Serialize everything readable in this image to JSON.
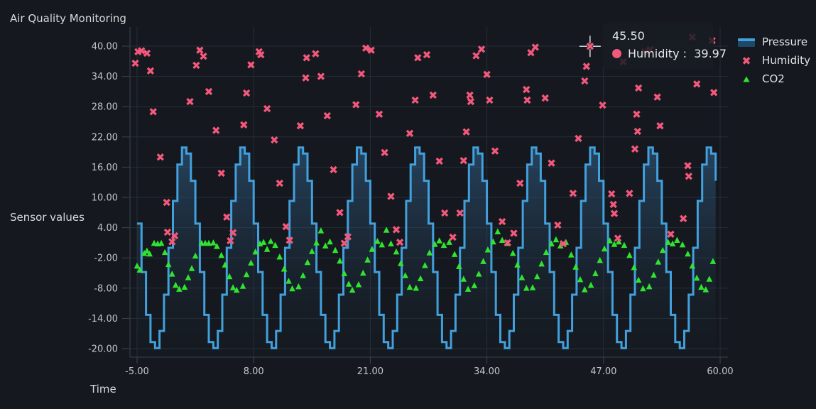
{
  "title": "Air Quality Monitoring",
  "colors": {
    "background": "#15191f",
    "grid": "#252d38",
    "axis": "#39424e",
    "tick_text": "#c2c7cc",
    "label_text": "#d6d8da",
    "pressure_line": "#42a0dd",
    "pressure_fill_top": "rgba(62,125,180,0.42)",
    "pressure_fill_bottom": "rgba(25,40,55,0.05)",
    "humidity": "#f4587b",
    "co2": "#2fe42f",
    "crosshair": "#e6e9ec"
  },
  "legend": {
    "items": [
      {
        "label": "Pressure",
        "type": "area"
      },
      {
        "label": "Humidity",
        "type": "cross"
      },
      {
        "label": "CO2",
        "type": "triangle"
      }
    ]
  },
  "tooltip": {
    "x_value": "45.50",
    "series_label": "Humidity",
    "separator": " :  ",
    "value": "39.97",
    "point": {
      "t": 45.5,
      "v": 39.97
    }
  },
  "chart_data": {
    "type": "mixed",
    "title": "Air Quality Monitoring",
    "xlabel": "Time",
    "ylabel": "Sensor values",
    "xlim": [
      -5.8,
      60.9
    ],
    "ylim": [
      -21.7,
      43.8
    ],
    "grid": true,
    "legend_position": "right-top-outside",
    "x_ticks": [
      {
        "v": -5,
        "label": "-5.00"
      },
      {
        "v": 8,
        "label": "8.00"
      },
      {
        "v": 21,
        "label": "21.00"
      },
      {
        "v": 34,
        "label": "34.00"
      },
      {
        "v": 47,
        "label": "47.00"
      },
      {
        "v": 60,
        "label": "60.00"
      }
    ],
    "y_ticks": [
      {
        "v": 40,
        "label": "40.00"
      },
      {
        "v": 34,
        "label": "34.00"
      },
      {
        "v": 28,
        "label": "28.00"
      },
      {
        "v": 22,
        "label": "22.00"
      },
      {
        "v": 16,
        "label": "16.00"
      },
      {
        "v": 10,
        "label": "10.00"
      },
      {
        "v": 4,
        "label": "4.00"
      },
      {
        "v": -2,
        "label": "-2.00"
      },
      {
        "v": -8,
        "label": "-8.00"
      },
      {
        "v": -14,
        "label": "-14.00"
      },
      {
        "v": -20,
        "label": "-20.00"
      }
    ],
    "series": [
      {
        "name": "Pressure",
        "type": "step-area",
        "x0": -5,
        "dx": 0.5,
        "values": [
          4.8,
          -4.8,
          -13.3,
          -18.7,
          -19.9,
          -16.5,
          -9.3,
          0,
          9.3,
          16.5,
          19.9,
          18.7,
          13.3,
          4.8,
          -4.8,
          -13.3,
          -18.7,
          -19.9,
          -16.5,
          -9.3,
          0,
          9.3,
          16.5,
          19.9,
          18.7,
          13.3,
          4.8,
          -4.8,
          -13.3,
          -18.7,
          -19.9,
          -16.5,
          -9.3,
          0,
          9.3,
          16.5,
          19.9,
          18.7,
          13.3,
          4.8,
          -4.8,
          -13.3,
          -18.7,
          -19.9,
          -16.5,
          -9.3,
          0,
          9.3,
          16.5,
          19.9,
          18.7,
          13.3,
          4.8,
          -4.8,
          -13.3,
          -18.7,
          -19.9,
          -16.5,
          -9.3,
          0,
          9.3,
          16.5,
          19.9,
          18.7,
          13.3,
          4.8,
          -4.8,
          -13.3,
          -18.7,
          -19.9,
          -16.5,
          -9.3,
          0,
          9.3,
          16.5,
          19.9,
          18.7,
          13.3,
          4.8,
          -4.8,
          -13.3,
          -18.7,
          -19.9,
          -16.5,
          -9.3,
          0,
          9.3,
          16.5,
          19.9,
          18.7,
          13.3,
          4.8,
          -4.8,
          -13.3,
          -18.7,
          -19.9,
          -16.5,
          -9.3,
          0,
          9.3,
          16.5,
          19.9,
          18.7,
          13.3,
          4.8,
          -4.8,
          -13.3,
          -18.7,
          -19.9,
          -16.5,
          -9.3,
          0,
          9.3,
          16.5,
          19.9,
          18.7,
          13.3,
          4.8,
          -4.8,
          -13.3,
          -18.7,
          -19.9,
          -16.5,
          -9.3,
          0,
          9.3,
          16.5,
          19.9,
          18.7,
          13.3
        ]
      },
      {
        "name": "Humidity",
        "type": "scatter",
        "marker": "x",
        "points": [
          [
            -5.2,
            36.6
          ],
          [
            -4.9,
            38.9
          ],
          [
            -4.5,
            39.1
          ],
          [
            -3.9,
            38.6
          ],
          [
            -3.5,
            35.1
          ],
          [
            -3.2,
            27.0
          ],
          [
            -2.4,
            18.0
          ],
          [
            -1.7,
            9.0
          ],
          [
            -1.6,
            3.1
          ],
          [
            -1.1,
            1.2
          ],
          [
            -0.8,
            2.4
          ],
          [
            0.9,
            29.0
          ],
          [
            1.6,
            36.2
          ],
          [
            2.0,
            39.2
          ],
          [
            2.4,
            38.0
          ],
          [
            3.0,
            31.0
          ],
          [
            3.8,
            23.3
          ],
          [
            4.4,
            14.8
          ],
          [
            5.0,
            6.1
          ],
          [
            5.4,
            1.4
          ],
          [
            5.7,
            3.0
          ],
          [
            6.9,
            24.4
          ],
          [
            7.2,
            30.7
          ],
          [
            7.7,
            36.3
          ],
          [
            8.6,
            38.9
          ],
          [
            8.8,
            38.3
          ],
          [
            9.5,
            27.6
          ],
          [
            10.3,
            21.4
          ],
          [
            10.9,
            12.8
          ],
          [
            11.6,
            4.2
          ],
          [
            12.0,
            1.5
          ],
          [
            13.2,
            24.2
          ],
          [
            13.8,
            33.7
          ],
          [
            13.9,
            37.7
          ],
          [
            14.9,
            38.5
          ],
          [
            15.5,
            34.0
          ],
          [
            16.2,
            26.2
          ],
          [
            16.9,
            15.5
          ],
          [
            17.6,
            7.0
          ],
          [
            18.1,
            0.9
          ],
          [
            18.5,
            2.2
          ],
          [
            19.4,
            28.4
          ],
          [
            20.0,
            34.5
          ],
          [
            20.5,
            39.6
          ],
          [
            21.1,
            39.2
          ],
          [
            22.0,
            26.5
          ],
          [
            22.6,
            18.9
          ],
          [
            23.3,
            10.2
          ],
          [
            23.9,
            3.6
          ],
          [
            24.3,
            1.1
          ],
          [
            25.4,
            22.7
          ],
          [
            26.0,
            29.3
          ],
          [
            26.3,
            37.7
          ],
          [
            27.3,
            38.3
          ],
          [
            28.0,
            30.3
          ],
          [
            28.7,
            17.2
          ],
          [
            29.3,
            6.9
          ],
          [
            30.2,
            2.1
          ],
          [
            31.0,
            6.9
          ],
          [
            31.4,
            17.3
          ],
          [
            31.7,
            23.0
          ],
          [
            32.1,
            30.3
          ],
          [
            32.2,
            29.0
          ],
          [
            32.8,
            38.1
          ],
          [
            33.4,
            39.4
          ],
          [
            34.0,
            34.4
          ],
          [
            34.3,
            29.3
          ],
          [
            34.9,
            19.2
          ],
          [
            35.7,
            5.2
          ],
          [
            36.3,
            1.0
          ],
          [
            37.0,
            2.9
          ],
          [
            37.7,
            12.8
          ],
          [
            38.4,
            31.4
          ],
          [
            38.5,
            29.3
          ],
          [
            38.9,
            38.7
          ],
          [
            39.4,
            39.8
          ],
          [
            40.5,
            29.7
          ],
          [
            41.2,
            16.8
          ],
          [
            41.9,
            4.5
          ],
          [
            42.5,
            0.8
          ],
          [
            43.6,
            10.8
          ],
          [
            44.2,
            21.7
          ],
          [
            44.9,
            33.1
          ],
          [
            45.1,
            36.0
          ],
          [
            45.5,
            39.97
          ],
          [
            46.9,
            28.3
          ],
          [
            47.9,
            10.7
          ],
          [
            48.1,
            8.6
          ],
          [
            48.2,
            6.8
          ],
          [
            48.6,
            1.9
          ],
          [
            49.2,
            36.9
          ],
          [
            49.9,
            10.8
          ],
          [
            50.5,
            19.6
          ],
          [
            50.7,
            26.5
          ],
          [
            50.8,
            23.1
          ],
          [
            50.9,
            31.7
          ],
          [
            51.6,
            38.9
          ],
          [
            52.2,
            39.3
          ],
          [
            53.0,
            29.9
          ],
          [
            53.3,
            24.2
          ],
          [
            54.5,
            2.7
          ],
          [
            55.9,
            5.8
          ],
          [
            56.4,
            16.3
          ],
          [
            56.5,
            14.2
          ],
          [
            56.9,
            41.8
          ],
          [
            57.4,
            32.5
          ],
          [
            59.1,
            41.1
          ],
          [
            59.3,
            30.8
          ]
        ]
      },
      {
        "name": "CO2",
        "type": "scatter",
        "marker": "triangle",
        "points": [
          [
            -5.0,
            -3.6
          ],
          [
            -4.7,
            -4.4
          ],
          [
            -4.2,
            -1.1
          ],
          [
            -3.9,
            -0.6
          ],
          [
            -3.6,
            -1.2
          ],
          [
            -3.1,
            0.9
          ],
          [
            -2.7,
            0.8
          ],
          [
            -2.3,
            0.9
          ],
          [
            -1.9,
            -0.9
          ],
          [
            -1.5,
            -3.3
          ],
          [
            -1.1,
            -5.2
          ],
          [
            -0.7,
            -7.4
          ],
          [
            -0.3,
            -8.2
          ],
          [
            0.3,
            -7.8
          ],
          [
            0.7,
            -5.9
          ],
          [
            1.1,
            -4.1
          ],
          [
            1.5,
            -1.6
          ],
          [
            2.2,
            0.9
          ],
          [
            2.6,
            0.9
          ],
          [
            3.0,
            0.9
          ],
          [
            3.5,
            1.0
          ],
          [
            3.9,
            0.3
          ],
          [
            4.4,
            -1.5
          ],
          [
            4.8,
            -3.4
          ],
          [
            5.3,
            -5.7
          ],
          [
            5.7,
            -7.9
          ],
          [
            6.1,
            -8.4
          ],
          [
            6.8,
            -7.6
          ],
          [
            7.2,
            -5.3
          ],
          [
            7.7,
            -3.0
          ],
          [
            8.2,
            -0.8
          ],
          [
            8.7,
            0.8
          ],
          [
            9.1,
            1.1
          ],
          [
            9.5,
            -0.3
          ],
          [
            9.9,
            1.3
          ],
          [
            10.4,
            0.5
          ],
          [
            10.9,
            -1.8
          ],
          [
            11.4,
            -4.2
          ],
          [
            11.9,
            -6.6
          ],
          [
            12.3,
            -8.1
          ],
          [
            13.0,
            -7.7
          ],
          [
            13.5,
            -5.5
          ],
          [
            14.0,
            -2.9
          ],
          [
            14.5,
            -0.7
          ],
          [
            15.0,
            1.0
          ],
          [
            15.5,
            3.4
          ],
          [
            16.0,
            0.4
          ],
          [
            16.5,
            1.2
          ],
          [
            17.1,
            -0.5
          ],
          [
            17.6,
            -2.6
          ],
          [
            18.1,
            -5.1
          ],
          [
            18.6,
            -7.2
          ],
          [
            19.0,
            -8.4
          ],
          [
            19.7,
            -7.3
          ],
          [
            20.2,
            -5.0
          ],
          [
            20.7,
            -2.4
          ],
          [
            21.2,
            -0.3
          ],
          [
            21.8,
            1.3
          ],
          [
            22.3,
            0.6
          ],
          [
            22.8,
            3.5
          ],
          [
            23.3,
            0.8
          ],
          [
            23.9,
            -0.8
          ],
          [
            24.4,
            -3.1
          ],
          [
            24.9,
            -5.5
          ],
          [
            25.4,
            -7.8
          ],
          [
            26.1,
            -8.0
          ],
          [
            26.6,
            -6.1
          ],
          [
            27.1,
            -3.5
          ],
          [
            27.6,
            -1.0
          ],
          [
            28.2,
            0.7
          ],
          [
            28.7,
            1.4
          ],
          [
            29.2,
            0.5
          ],
          [
            29.8,
            1.1
          ],
          [
            30.4,
            -1.3
          ],
          [
            30.9,
            -3.7
          ],
          [
            31.4,
            -6.2
          ],
          [
            31.9,
            -8.2
          ],
          [
            32.6,
            -7.5
          ],
          [
            33.1,
            -5.2
          ],
          [
            33.6,
            -2.7
          ],
          [
            34.1,
            -0.4
          ],
          [
            34.7,
            1.2
          ],
          [
            35.2,
            3.2
          ],
          [
            35.7,
            1.5
          ],
          [
            36.3,
            0.9
          ],
          [
            36.9,
            -1.1
          ],
          [
            37.4,
            -3.4
          ],
          [
            37.9,
            -5.9
          ],
          [
            38.4,
            -8.0
          ],
          [
            39.1,
            -7.9
          ],
          [
            39.6,
            -5.7
          ],
          [
            40.1,
            -3.2
          ],
          [
            40.6,
            -0.9
          ],
          [
            41.2,
            0.8
          ],
          [
            41.7,
            1.6
          ],
          [
            42.2,
            0.4
          ],
          [
            42.8,
            1.1
          ],
          [
            43.4,
            -1.4
          ],
          [
            43.9,
            -3.8
          ],
          [
            44.4,
            -6.3
          ],
          [
            44.9,
            -8.3
          ],
          [
            45.6,
            -7.4
          ],
          [
            46.1,
            -5.1
          ],
          [
            46.6,
            -2.5
          ],
          [
            47.1,
            -0.2
          ],
          [
            47.7,
            1.4
          ],
          [
            48.2,
            0.7
          ],
          [
            48.7,
            1.2
          ],
          [
            49.3,
            0.5
          ],
          [
            49.9,
            -1.5
          ],
          [
            50.4,
            -3.9
          ],
          [
            50.9,
            -6.4
          ],
          [
            51.4,
            -8.1
          ],
          [
            52.1,
            -7.7
          ],
          [
            52.6,
            -5.4
          ],
          [
            53.1,
            -2.8
          ],
          [
            53.6,
            -0.5
          ],
          [
            54.2,
            1.1
          ],
          [
            54.7,
            0.8
          ],
          [
            55.2,
            1.5
          ],
          [
            55.8,
            0.6
          ],
          [
            56.4,
            -1.2
          ],
          [
            56.9,
            -3.6
          ],
          [
            57.4,
            -6.0
          ],
          [
            57.9,
            -7.8
          ],
          [
            58.4,
            -8.3
          ],
          [
            58.8,
            -6.2
          ],
          [
            59.2,
            -2.7
          ]
        ]
      }
    ]
  }
}
